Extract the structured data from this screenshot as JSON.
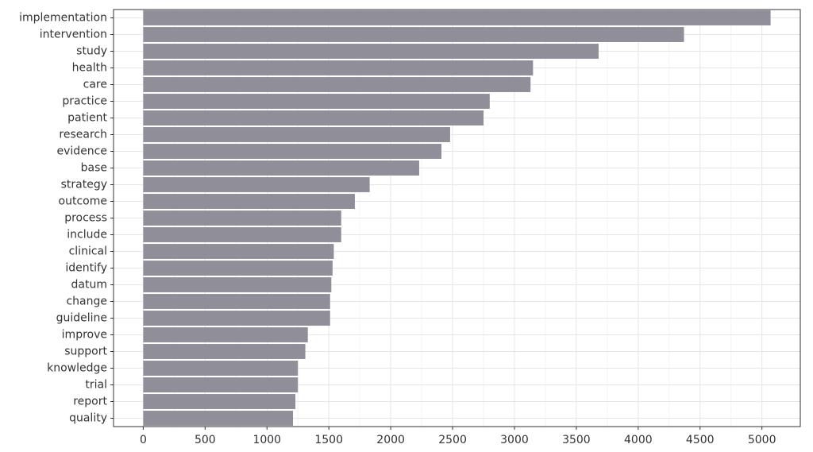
{
  "chart_data": {
    "type": "bar",
    "orientation": "horizontal",
    "categories": [
      "implementation",
      "intervention",
      "study",
      "health",
      "care",
      "practice",
      "patient",
      "research",
      "evidence",
      "base",
      "strategy",
      "outcome",
      "process",
      "include",
      "clinical",
      "identify",
      "datum",
      "change",
      "guideline",
      "improve",
      "support",
      "knowledge",
      "trial",
      "report",
      "quality"
    ],
    "values": [
      5070,
      4370,
      3680,
      3150,
      3130,
      2800,
      2750,
      2480,
      2410,
      2230,
      1830,
      1710,
      1600,
      1600,
      1540,
      1530,
      1520,
      1510,
      1510,
      1330,
      1310,
      1250,
      1250,
      1230,
      1210
    ],
    "color": "#8f8e99",
    "xlim": [
      -240,
      5310
    ],
    "xticks": [
      0,
      500,
      1000,
      1500,
      2000,
      2500,
      3000,
      3500,
      4000,
      4500,
      5000
    ],
    "grid": true
  }
}
